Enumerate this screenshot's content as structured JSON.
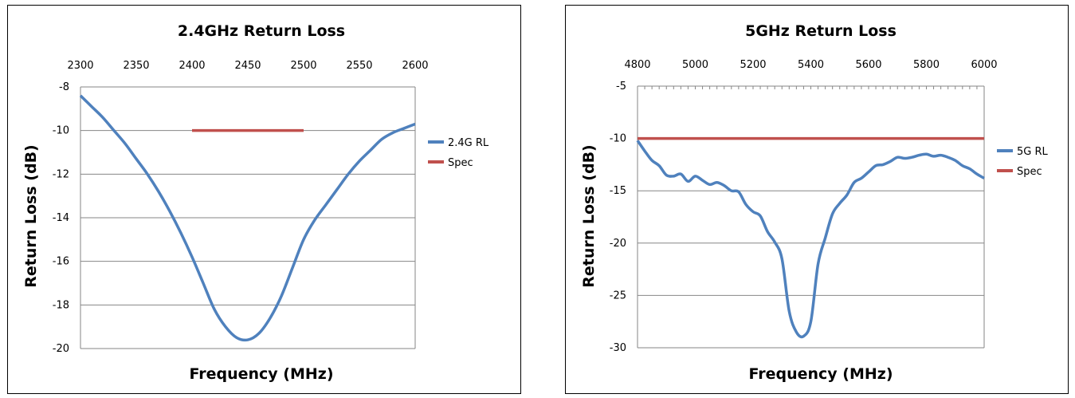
{
  "chart_data": [
    {
      "type": "line",
      "title": "2.4GHz Return Loss",
      "xlabel": "Frequency (MHz)",
      "ylabel": "Return Loss (dB)",
      "xlim": [
        2300,
        2600
      ],
      "ylim": [
        -20,
        -8
      ],
      "x_ticks": [
        "2300",
        "2350",
        "2400",
        "2450",
        "2500",
        "2550",
        "2600"
      ],
      "y_ticks": [
        "-8",
        "-10",
        "-12",
        "-14",
        "-16",
        "-18",
        "-20"
      ],
      "x_axis_position": "top",
      "grid": "horizontal",
      "legend_position": "right",
      "series": [
        {
          "name": "2.4G RL",
          "color": "#4f81bd",
          "x": [
            2300,
            2310,
            2320,
            2330,
            2340,
            2350,
            2360,
            2370,
            2380,
            2390,
            2400,
            2410,
            2420,
            2430,
            2440,
            2450,
            2460,
            2470,
            2480,
            2490,
            2500,
            2510,
            2520,
            2530,
            2540,
            2550,
            2560,
            2570,
            2580,
            2590,
            2600
          ],
          "y": [
            -8.4,
            -8.9,
            -9.4,
            -10.0,
            -10.6,
            -11.3,
            -12.0,
            -12.8,
            -13.7,
            -14.7,
            -15.8,
            -17.0,
            -18.2,
            -19.0,
            -19.5,
            -19.6,
            -19.3,
            -18.6,
            -17.6,
            -16.3,
            -15.0,
            -14.1,
            -13.4,
            -12.7,
            -12.0,
            -11.4,
            -10.9,
            -10.4,
            -10.1,
            -9.9,
            -9.7
          ]
        },
        {
          "name": "Spec",
          "color": "#c0504d",
          "x": [
            2400,
            2500
          ],
          "y": [
            -10,
            -10
          ]
        }
      ]
    },
    {
      "type": "line",
      "title": "5GHz Return Loss",
      "xlabel": "Frequency (MHz)",
      "ylabel": "Return Loss (dB)",
      "xlim": [
        4800,
        6000
      ],
      "ylim": [
        -30,
        -5
      ],
      "x_ticks": [
        "4800",
        "5000",
        "5200",
        "5400",
        "5600",
        "5800",
        "6000"
      ],
      "y_ticks": [
        "-5",
        "-10",
        "-15",
        "-20",
        "-25",
        "-30"
      ],
      "x_axis_position": "top",
      "grid": "horizontal",
      "legend_position": "right",
      "series": [
        {
          "name": "5G RL",
          "color": "#4f81bd",
          "x": [
            4800,
            4825,
            4850,
            4875,
            4900,
            4925,
            4950,
            4975,
            5000,
            5025,
            5050,
            5075,
            5100,
            5125,
            5150,
            5175,
            5200,
            5225,
            5250,
            5275,
            5300,
            5325,
            5350,
            5375,
            5400,
            5425,
            5450,
            5475,
            5500,
            5525,
            5550,
            5575,
            5600,
            5625,
            5650,
            5675,
            5700,
            5725,
            5750,
            5775,
            5800,
            5825,
            5850,
            5875,
            5900,
            5925,
            5950,
            5975,
            6000
          ],
          "y": [
            -10.2,
            -11.2,
            -12.1,
            -12.6,
            -13.5,
            -13.6,
            -13.4,
            -14.1,
            -13.6,
            -14.0,
            -14.4,
            -14.2,
            -14.5,
            -15.0,
            -15.1,
            -16.3,
            -17.0,
            -17.4,
            -18.9,
            -19.9,
            -21.5,
            -26.5,
            -28.5,
            -28.9,
            -27.5,
            -22.0,
            -19.5,
            -17.2,
            -16.2,
            -15.4,
            -14.2,
            -13.8,
            -13.2,
            -12.6,
            -12.5,
            -12.2,
            -11.8,
            -11.9,
            -11.8,
            -11.6,
            -11.5,
            -11.7,
            -11.6,
            -11.8,
            -12.1,
            -12.6,
            -12.9,
            -13.4,
            -13.8
          ]
        },
        {
          "name": "Spec",
          "color": "#c0504d",
          "x": [
            4800,
            6000
          ],
          "y": [
            -10,
            -10
          ]
        }
      ]
    }
  ]
}
